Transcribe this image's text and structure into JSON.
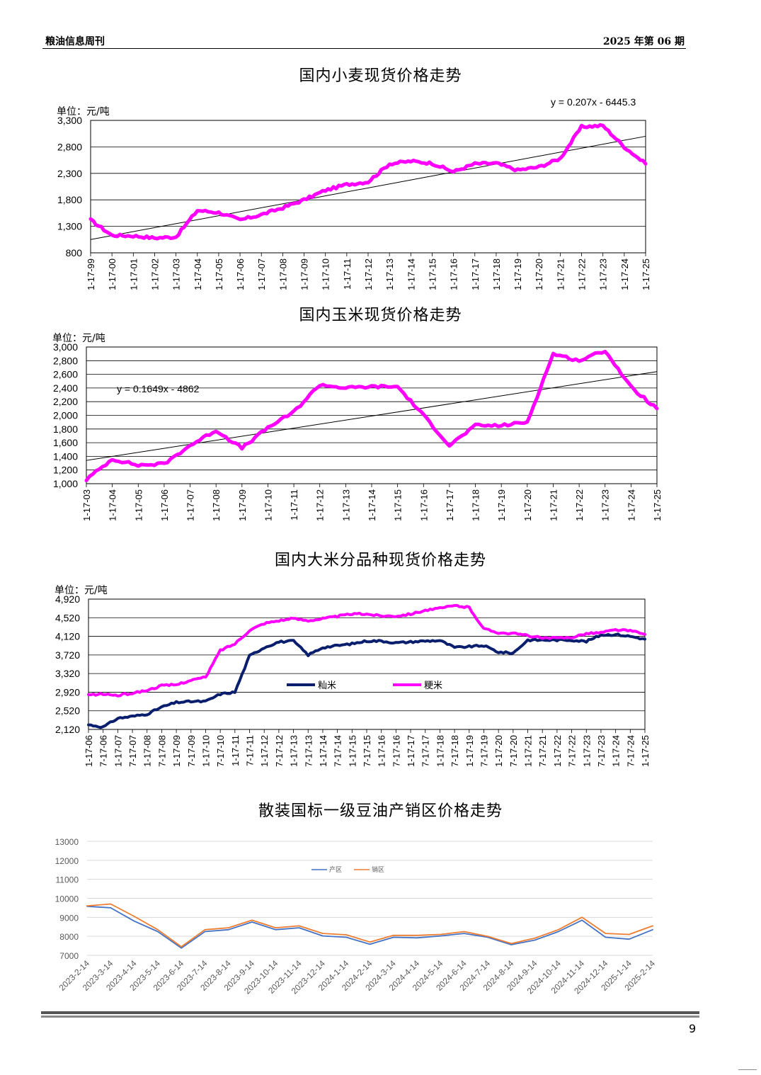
{
  "header": {
    "left": "粮油信息周刊",
    "right": "2025 年第 06 期"
  },
  "page_number": "9",
  "colors": {
    "magenta": "#FF00FF",
    "navy": "#0A1E6E",
    "blue": "#4472C4",
    "orange": "#ED7D31"
  },
  "chart_data": [
    {
      "type": "line",
      "title": "国内小麦现货价格走势",
      "unit_label": "单位：元/吨",
      "trendline_label": "y = 0.207x  - 6445.3",
      "yticks": [
        "3,300",
        "2,800",
        "2,300",
        "1,800",
        "1,300",
        "800"
      ],
      "ylim": [
        800,
        3300
      ],
      "categories": [
        "1-17-99",
        "1-17-00",
        "1-17-01",
        "1-17-02",
        "1-17-03",
        "1-17-04",
        "1-17-05",
        "1-17-06",
        "1-17-07",
        "1-17-08",
        "1-17-09",
        "1-17-10",
        "1-17-11",
        "1-17-12",
        "1-17-13",
        "1-17-14",
        "1-17-15",
        "1-17-16",
        "1-17-17",
        "1-17-18",
        "1-17-19",
        "1-17-20",
        "1-17-21",
        "1-17-22",
        "1-17-23",
        "1-17-24",
        "1-17-25"
      ],
      "series": [
        {
          "values": [
            1420,
            1130,
            1120,
            1080,
            1100,
            1600,
            1560,
            1420,
            1520,
            1650,
            1800,
            1980,
            2090,
            2140,
            2480,
            2530,
            2490,
            2330,
            2480,
            2490,
            2360,
            2420,
            2580,
            3180,
            3200,
            2800,
            2480
          ]
        }
      ],
      "trendline": [
        1050,
        3000
      ]
    },
    {
      "type": "line",
      "title": "国内玉米现货价格走势",
      "unit_label": "单位：元/吨",
      "trendline_label": "y = 0.1649x  - 4862",
      "yticks": [
        "3,000",
        "2,800",
        "2,600",
        "2,400",
        "2,200",
        "2,000",
        "1,800",
        "1,600",
        "1,400",
        "1,200",
        "1,000"
      ],
      "ylim": [
        1000,
        3000
      ],
      "categories": [
        "1-17-03",
        "1-17-04",
        "1-17-05",
        "1-17-06",
        "1-17-07",
        "1-17-08",
        "1-17-09",
        "1-17-10",
        "1-17-11",
        "1-17-12",
        "1-17-13",
        "1-17-14",
        "1-17-15",
        "1-17-16",
        "1-17-17",
        "1-17-18",
        "1-17-19",
        "1-17-20",
        "1-17-21",
        "1-17-22",
        "1-17-23",
        "1-17-24",
        "1-17-25"
      ],
      "series": [
        {
          "values": [
            1060,
            1360,
            1270,
            1290,
            1560,
            1780,
            1520,
            1820,
            2050,
            2450,
            2400,
            2420,
            2420,
            2000,
            1560,
            1850,
            1850,
            1900,
            2900,
            2800,
            2950,
            2410,
            2100
          ]
        }
      ],
      "trendline": [
        1340,
        2640
      ]
    },
    {
      "type": "line",
      "title": "国内大米分品种现货价格走势",
      "unit_label": "单位：元/吨",
      "yticks": [
        "4,920",
        "4,520",
        "4,120",
        "3,720",
        "3,320",
        "2,920",
        "2,520",
        "2,120"
      ],
      "ylim": [
        2120,
        4920
      ],
      "categories": [
        "1-17-06",
        "7-17-06",
        "1-17-07",
        "7-17-07",
        "1-17-08",
        "7-17-08",
        "1-17-09",
        "7-17-09",
        "1-17-10",
        "7-17-10",
        "1-17-11",
        "7-17-11",
        "1-17-12",
        "7-17-12",
        "1-17-13",
        "7-17-13",
        "1-17-14",
        "7-17-14",
        "1-17-15",
        "7-17-15",
        "1-17-16",
        "7-17-16",
        "1-17-17",
        "7-17-17",
        "1-17-18",
        "7-17-18",
        "1-17-19",
        "7-17-19",
        "1-17-20",
        "7-17-20",
        "1-17-21",
        "7-17-21",
        "1-17-22",
        "7-17-22",
        "1-17-23",
        "7-17-23",
        "1-17-24",
        "7-17-24",
        "1-17-25"
      ],
      "series": [
        {
          "name": "籼米",
          "values": [
            2220,
            2170,
            2360,
            2400,
            2450,
            2600,
            2700,
            2720,
            2720,
            2880,
            2920,
            3700,
            3880,
            4000,
            4020,
            3720,
            3880,
            3920,
            3960,
            4020,
            4020,
            3980,
            4000,
            4020,
            4030,
            3880,
            3900,
            3920,
            3780,
            3760,
            4040,
            4040,
            4040,
            4040,
            4010,
            4150,
            4160,
            4120,
            4060
          ]
        },
        {
          "name": "粳米",
          "values": [
            2860,
            2880,
            2850,
            2900,
            2960,
            3060,
            3080,
            3180,
            3240,
            3820,
            3960,
            4250,
            4400,
            4460,
            4500,
            4460,
            4500,
            4550,
            4600,
            4600,
            4560,
            4560,
            4600,
            4680,
            4720,
            4780,
            4740,
            4280,
            4200,
            4180,
            4140,
            4080,
            4080,
            4100,
            4180,
            4200,
            4260,
            4240,
            4160
          ]
        }
      ]
    },
    {
      "type": "line",
      "title": "散装国标一级豆油产销区价格走势",
      "yticks": [
        "13000",
        "12000",
        "11000",
        "10000",
        "9000",
        "8000",
        "7000"
      ],
      "ylim": [
        7000,
        13000
      ],
      "categories": [
        "2023-2-14",
        "2023-3-14",
        "2023-4-14",
        "2023-5-14",
        "2023-6-14",
        "2023-7-14",
        "2023-8-14",
        "2023-9-14",
        "2023-10-14",
        "2023-11-14",
        "2023-12-14",
        "2024-1-14",
        "2024-2-14",
        "2024-3-14",
        "2024-4-14",
        "2024-5-14",
        "2024-6-14",
        "2024-7-14",
        "2024-8-14",
        "2024-9-14",
        "2024-10-14",
        "2024-11-14",
        "2024-12-14",
        "2025-1-14",
        "2025-2-14"
      ],
      "series": [
        {
          "name": "产区",
          "values": [
            9580,
            9500,
            8800,
            8250,
            7380,
            8250,
            8350,
            8750,
            8350,
            8450,
            8020,
            7950,
            7580,
            7950,
            7920,
            8020,
            8150,
            7950,
            7560,
            7800,
            8250,
            8850,
            7950,
            7850,
            8350
          ]
        },
        {
          "name": "销区",
          "values": [
            9600,
            9700,
            9050,
            8350,
            7450,
            8350,
            8450,
            8850,
            8450,
            8550,
            8150,
            8080,
            7700,
            8050,
            8050,
            8100,
            8250,
            8000,
            7620,
            7900,
            8350,
            9000,
            8150,
            8100,
            8550
          ]
        }
      ]
    }
  ]
}
